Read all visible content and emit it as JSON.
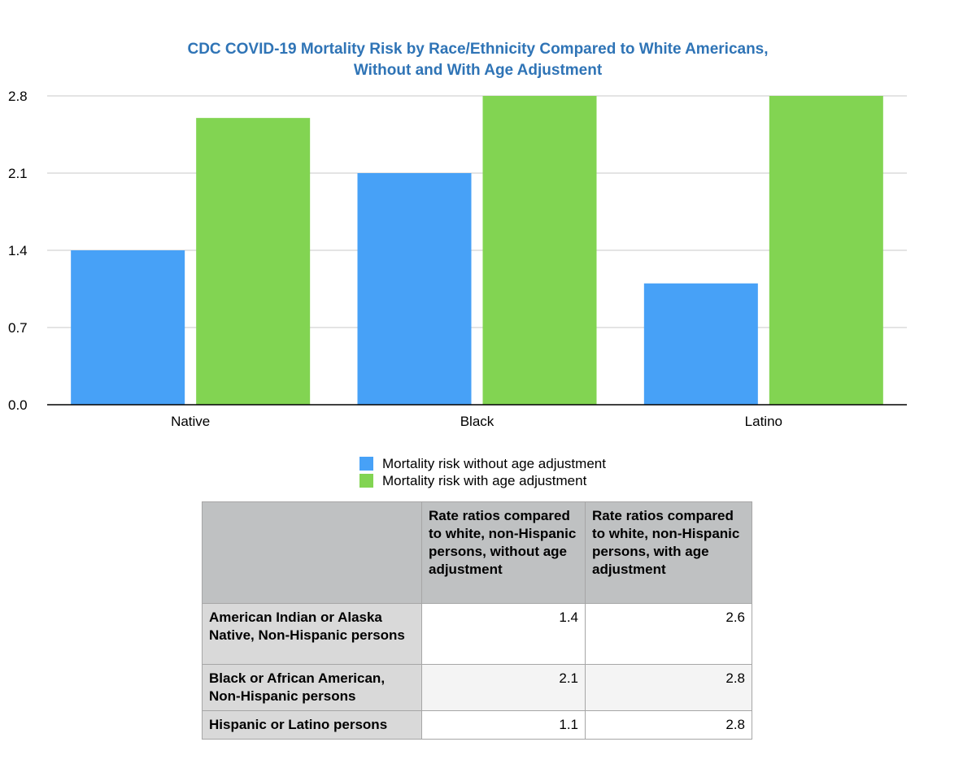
{
  "chart_data": {
    "type": "bar",
    "title_lines": [
      "CDC COVID-19 Mortality Risk by Race/Ethnicity Compared to White Americans,",
      "Without and With Age Adjustment"
    ],
    "categories": [
      "Native",
      "Black",
      "Latino"
    ],
    "series": [
      {
        "name": "Mortality risk without age adjustment",
        "values": [
          1.4,
          2.1,
          1.1
        ],
        "color": "#47a1f7"
      },
      {
        "name": "Mortality risk with age adjustment",
        "values": [
          2.6,
          2.8,
          2.8
        ],
        "color": "#82d452"
      }
    ],
    "ylim": [
      0,
      2.8
    ],
    "yticks": [
      "0.0",
      "0.7",
      "1.4",
      "2.1",
      "2.8"
    ],
    "xlabel": "",
    "ylabel": "",
    "grid": true,
    "legend_position": "bottom"
  },
  "table": {
    "headers": [
      "",
      "Rate ratios compared to white, non-Hispanic persons, without age adjustment",
      "Rate ratios compared to white, non-Hispanic persons, with age adjustment"
    ],
    "rows": [
      {
        "label": "American Indian or Alaska Native, Non-Hispanic persons",
        "without": "1.4",
        "with": "2.6"
      },
      {
        "label": "Black or African American, Non-Hispanic persons",
        "without": "2.1",
        "with": "2.8"
      },
      {
        "label": "Hispanic or Latino persons",
        "without": "1.1",
        "with": "2.8"
      }
    ]
  }
}
